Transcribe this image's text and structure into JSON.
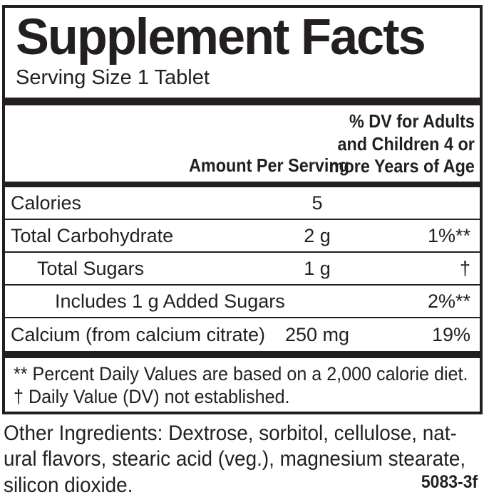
{
  "label": {
    "title": "Supplement Facts",
    "serving_size": "Serving Size 1 Tablet",
    "header": {
      "amount_col": "Amount Per Serving",
      "dv_col_lines": [
        "% DV for Adults",
        "and Children 4 or",
        "more Years of Age"
      ]
    },
    "rows": [
      {
        "name": "Calories",
        "amount": "5",
        "dv": ""
      },
      {
        "name": "Total Carbohydrate",
        "amount": "2 g",
        "dv": "1%**"
      },
      {
        "name": "Total Sugars",
        "amount": "1 g",
        "dv": "†"
      },
      {
        "name": "Includes 1 g Added Sugars",
        "amount": "",
        "dv": "2%**"
      },
      {
        "name": "Calcium (from calcium citrate)",
        "amount": "250 mg",
        "dv": "19%"
      }
    ],
    "footnotes": [
      "** Percent Daily Values are based on a 2,000 calorie diet.",
      "† Daily Value (DV) not established."
    ]
  },
  "other_ingredients": {
    "lines": [
      "Other Ingredients: Dextrose, sorbitol, cellulose, nat-",
      "ural flavors, stearic acid (veg.), magnesium stearate,",
      "silicon dioxide."
    ]
  },
  "item_code": "5083-3f",
  "colors": {
    "ink": "#231f20",
    "background": "#ffffff"
  }
}
